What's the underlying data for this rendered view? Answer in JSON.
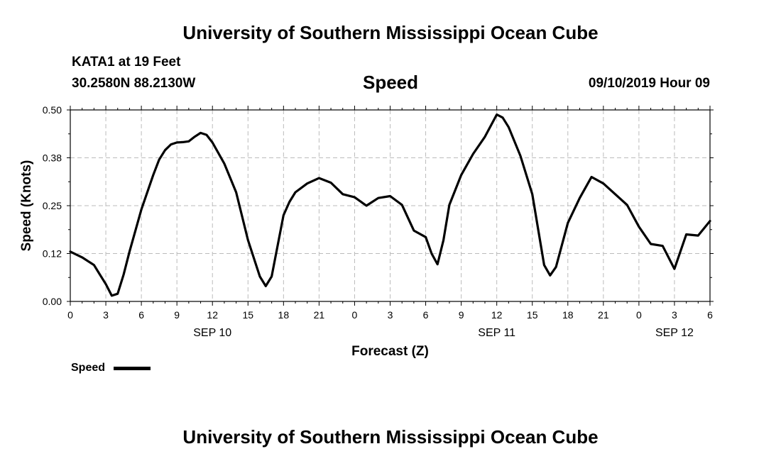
{
  "header": {
    "title": "University of Southern Mississippi Ocean Cube",
    "station": "KATA1 at 19 Feet",
    "coordinates": "30.2580N 88.2130W",
    "chart_title": "Speed",
    "datetime": "09/10/2019 Hour 09"
  },
  "footer": {
    "title": "University of Southern Mississippi Ocean Cube"
  },
  "legend": {
    "label": "Speed",
    "color": "#000000"
  },
  "chart_data": {
    "type": "line",
    "ylabel": "Speed (Knots)",
    "xlabel": "Forecast (Z)",
    "ylim": [
      0,
      0.5
    ],
    "yticks": [
      "0.00",
      "0.12",
      "0.25",
      "0.38",
      "0.50"
    ],
    "xlim": [
      0,
      54
    ],
    "xtick_labels": [
      "0",
      "3",
      "6",
      "9",
      "12",
      "15",
      "18",
      "21",
      "0",
      "3",
      "6",
      "9",
      "12",
      "15",
      "18",
      "21",
      "0",
      "3",
      "6"
    ],
    "date_labels": [
      {
        "label": "SEP 10",
        "hour": 12
      },
      {
        "label": "SEP 11",
        "hour": 36
      },
      {
        "label": "SEP 12",
        "hour": 51
      }
    ],
    "grid": true,
    "series": [
      {
        "name": "Speed",
        "x": [
          0,
          1,
          2,
          2.5,
          3,
          3.5,
          4,
          4.5,
          5,
          6,
          7,
          7.5,
          8,
          8.5,
          9,
          9.5,
          10,
          10.5,
          11,
          11.5,
          12,
          13,
          14,
          15,
          16,
          16.5,
          17,
          18,
          18.5,
          19,
          20,
          21,
          22,
          23,
          24,
          25,
          26,
          27,
          28,
          29,
          30,
          30.5,
          31,
          31.5,
          32,
          33,
          34,
          35,
          36,
          36.5,
          37,
          38,
          39,
          40,
          40.5,
          41,
          42,
          43,
          44,
          45,
          46,
          47,
          48,
          49,
          50,
          51,
          52,
          53,
          54
        ],
        "values": [
          0.13,
          0.115,
          0.095,
          0.07,
          0.045,
          0.015,
          0.02,
          0.07,
          0.13,
          0.24,
          0.33,
          0.37,
          0.395,
          0.41,
          0.415,
          0.416,
          0.418,
          0.43,
          0.44,
          0.435,
          0.415,
          0.36,
          0.285,
          0.16,
          0.065,
          0.04,
          0.065,
          0.225,
          0.26,
          0.285,
          0.308,
          0.322,
          0.31,
          0.28,
          0.272,
          0.25,
          0.27,
          0.275,
          0.252,
          0.185,
          0.168,
          0.125,
          0.097,
          0.16,
          0.252,
          0.33,
          0.385,
          0.43,
          0.488,
          0.48,
          0.455,
          0.38,
          0.28,
          0.095,
          0.068,
          0.09,
          0.205,
          0.27,
          0.325,
          0.308,
          0.28,
          0.252,
          0.195,
          0.15,
          0.145,
          0.085,
          0.175,
          0.172,
          0.21
        ]
      }
    ]
  }
}
